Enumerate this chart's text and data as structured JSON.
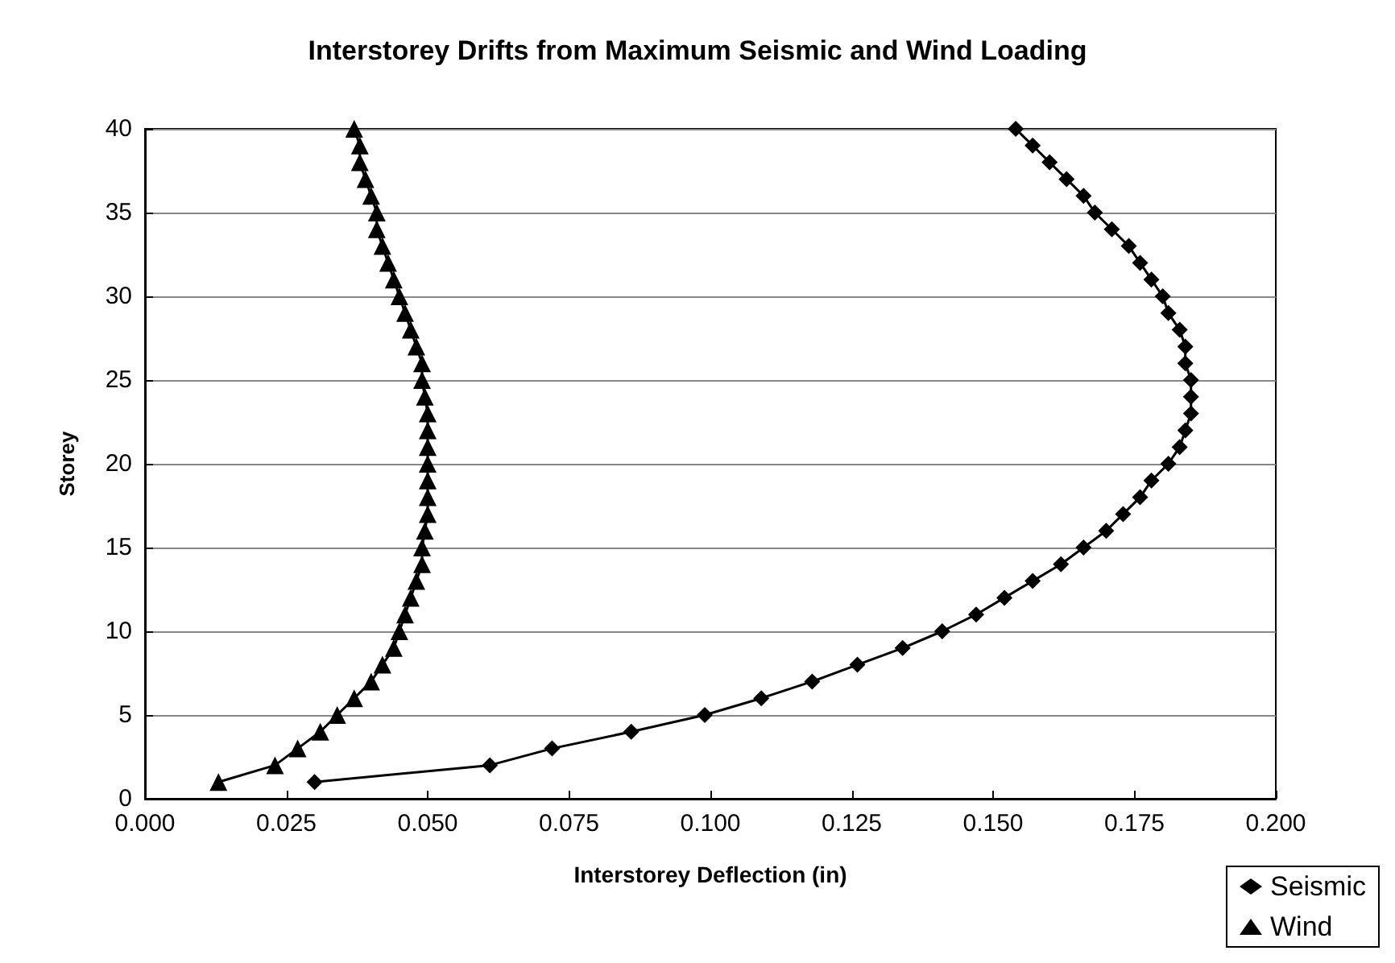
{
  "chart_data": {
    "type": "line",
    "title": "Interstorey Drifts from Maximum Seismic and Wind Loading",
    "xlabel": "Interstorey Deflection (in)",
    "ylabel": "Storey",
    "xlim": [
      0,
      0.2
    ],
    "xticks": [
      {
        "value": 0,
        "label": "0.000"
      },
      {
        "value": 0.025,
        "label": "0.025"
      },
      {
        "value": 0.05,
        "label": "0.050"
      },
      {
        "value": 0.075,
        "label": "0.075"
      },
      {
        "value": 0.1,
        "label": "0.100"
      },
      {
        "value": 0.125,
        "label": "0.125"
      },
      {
        "value": 0.15,
        "label": "0.150"
      },
      {
        "value": 0.175,
        "label": "0.175"
      },
      {
        "value": 0.2,
        "label": "0.200"
      }
    ],
    "ylim": [
      0,
      40
    ],
    "yticks": [
      0,
      5,
      10,
      15,
      20,
      25,
      30,
      35,
      40
    ],
    "grid": "y",
    "legend": "bottom right",
    "line_style": "solid",
    "series": [
      {
        "name": "Seismic",
        "color": "#000000",
        "marker": "diamond",
        "x": [
          0.03,
          0.061,
          0.072,
          0.086,
          0.099,
          0.109,
          0.118,
          0.126,
          0.134,
          0.141,
          0.147,
          0.152,
          0.157,
          0.162,
          0.166,
          0.17,
          0.173,
          0.176,
          0.178,
          0.181,
          0.183,
          0.184,
          0.185,
          0.185,
          0.185,
          0.184,
          0.184,
          0.183,
          0.181,
          0.18,
          0.178,
          0.176,
          0.174,
          0.171,
          0.168,
          0.166,
          0.163,
          0.16,
          0.157,
          0.154
        ],
        "values": [
          1,
          2,
          3,
          4,
          5,
          6,
          7,
          8,
          9,
          10,
          11,
          12,
          13,
          14,
          15,
          16,
          17,
          18,
          19,
          20,
          21,
          22,
          23,
          24,
          25,
          26,
          27,
          28,
          29,
          30,
          31,
          32,
          33,
          34,
          35,
          36,
          37,
          38,
          39,
          40
        ]
      },
      {
        "name": "Wind",
        "color": "#000000",
        "marker": "triangle",
        "x": [
          0.013,
          0.023,
          0.027,
          0.031,
          0.034,
          0.037,
          0.04,
          0.042,
          0.044,
          0.045,
          0.046,
          0.047,
          0.048,
          0.049,
          0.049,
          0.0495,
          0.05,
          0.05,
          0.05,
          0.05,
          0.05,
          0.05,
          0.05,
          0.0495,
          0.049,
          0.049,
          0.048,
          0.047,
          0.046,
          0.045,
          0.044,
          0.043,
          0.042,
          0.041,
          0.041,
          0.04,
          0.039,
          0.038,
          0.038,
          0.037
        ],
        "values": [
          1,
          2,
          3,
          4,
          5,
          6,
          7,
          8,
          9,
          10,
          11,
          12,
          13,
          14,
          15,
          16,
          17,
          18,
          19,
          20,
          21,
          22,
          23,
          24,
          25,
          26,
          27,
          28,
          29,
          30,
          31,
          32,
          33,
          34,
          35,
          36,
          37,
          38,
          39,
          40
        ]
      }
    ]
  }
}
